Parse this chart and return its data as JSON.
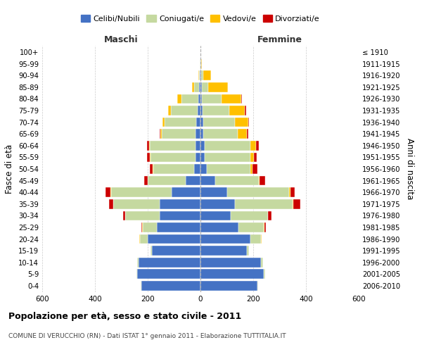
{
  "age_groups": [
    "0-4",
    "5-9",
    "10-14",
    "15-19",
    "20-24",
    "25-29",
    "30-34",
    "35-39",
    "40-44",
    "45-49",
    "50-54",
    "55-59",
    "60-64",
    "65-69",
    "70-74",
    "75-79",
    "80-84",
    "85-89",
    "90-94",
    "95-99",
    "100+"
  ],
  "birth_years": [
    "2006-2010",
    "2001-2005",
    "1996-2000",
    "1991-1995",
    "1986-1990",
    "1981-1985",
    "1976-1980",
    "1971-1975",
    "1966-1970",
    "1961-1965",
    "1956-1960",
    "1951-1955",
    "1946-1950",
    "1941-1945",
    "1936-1940",
    "1931-1935",
    "1926-1930",
    "1921-1925",
    "1916-1920",
    "1911-1915",
    "≤ 1910"
  ],
  "male": {
    "celibi": [
      225,
      240,
      235,
      185,
      200,
      165,
      155,
      155,
      110,
      55,
      25,
      20,
      18,
      18,
      15,
      12,
      8,
      5,
      2,
      1,
      0
    ],
    "coniugati": [
      2,
      2,
      5,
      5,
      30,
      55,
      130,
      175,
      230,
      145,
      155,
      170,
      175,
      130,
      120,
      100,
      65,
      20,
      4,
      1,
      0
    ],
    "vedovi": [
      0,
      0,
      0,
      0,
      1,
      1,
      1,
      1,
      2,
      1,
      2,
      2,
      3,
      5,
      8,
      10,
      15,
      8,
      2,
      0,
      0
    ],
    "divorziati": [
      0,
      0,
      0,
      0,
      2,
      3,
      8,
      15,
      18,
      12,
      10,
      10,
      8,
      2,
      2,
      2,
      0,
      0,
      0,
      0,
      0
    ]
  },
  "female": {
    "nubili": [
      215,
      240,
      230,
      175,
      190,
      145,
      115,
      130,
      100,
      55,
      25,
      15,
      15,
      10,
      10,
      8,
      5,
      5,
      2,
      1,
      0
    ],
    "coniugate": [
      3,
      5,
      8,
      10,
      40,
      95,
      140,
      220,
      235,
      165,
      165,
      175,
      175,
      130,
      120,
      100,
      75,
      25,
      8,
      2,
      0
    ],
    "vedove": [
      0,
      0,
      0,
      0,
      1,
      2,
      2,
      3,
      5,
      5,
      8,
      12,
      20,
      35,
      50,
      60,
      75,
      75,
      30,
      2,
      0
    ],
    "divorziate": [
      0,
      0,
      0,
      0,
      2,
      5,
      12,
      25,
      18,
      20,
      18,
      10,
      10,
      5,
      5,
      5,
      2,
      0,
      0,
      0,
      0
    ]
  },
  "colors": {
    "celibi": "#4472c4",
    "coniugati": "#c5d9a0",
    "vedovi": "#ffc000",
    "divorziati": "#cc0000"
  },
  "title": "Popolazione per età, sesso e stato civile - 2011",
  "subtitle": "COMUNE DI VERUCCHIO (RN) - Dati ISTAT 1° gennaio 2011 - Elaborazione TUTTITALIA.IT",
  "xlabel_left": "Maschi",
  "xlabel_right": "Femmine",
  "ylabel_left": "Fasce di età",
  "ylabel_right": "Anni di nascita",
  "xlim": 600,
  "legend_labels": [
    "Celibi/Nubili",
    "Coniugati/e",
    "Vedovi/e",
    "Divorziati/e"
  ],
  "background_color": "#ffffff",
  "bar_height": 0.82
}
